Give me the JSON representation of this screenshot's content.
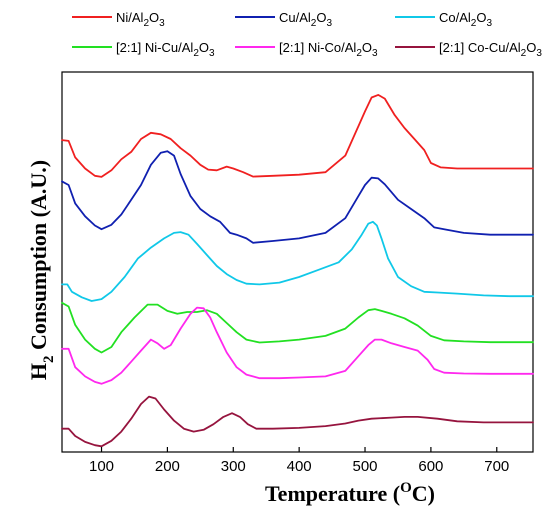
{
  "chart_data": {
    "type": "line",
    "xlabel_main": "Temperature (",
    "xlabel_sup": "O",
    "xlabel_tail": "C)",
    "ylabel_main": "H",
    "ylabel_sub": "2",
    "ylabel_tail": " Consumption (A.U.)",
    "xlim": [
      40,
      755
    ],
    "ylim": [
      0,
      1
    ],
    "x_ticks": [
      100,
      200,
      300,
      400,
      500,
      600,
      700
    ],
    "y_ticks_shown": false,
    "grid": false,
    "legend_position": "top",
    "series": [
      {
        "name": "Ni/Al2O3",
        "legend": {
          "pre": "Ni/Al",
          "s1": "2",
          "mid": "O",
          "s2": "3"
        },
        "color": "#f02020",
        "x": [
          40,
          50,
          60,
          75,
          90,
          100,
          115,
          130,
          145,
          160,
          175,
          190,
          205,
          220,
          235,
          250,
          262,
          275,
          290,
          300,
          315,
          330,
          360,
          400,
          440,
          470,
          490,
          500,
          510,
          520,
          530,
          545,
          560,
          575,
          590,
          600,
          615,
          640,
          680,
          720,
          755
        ],
        "y": [
          0.842,
          0.84,
          0.795,
          0.765,
          0.745,
          0.742,
          0.76,
          0.79,
          0.81,
          0.845,
          0.862,
          0.858,
          0.845,
          0.82,
          0.8,
          0.775,
          0.762,
          0.76,
          0.77,
          0.765,
          0.755,
          0.743,
          0.745,
          0.748,
          0.755,
          0.8,
          0.88,
          0.92,
          0.958,
          0.965,
          0.955,
          0.91,
          0.875,
          0.845,
          0.815,
          0.78,
          0.768,
          0.765,
          0.765,
          0.765,
          0.765
        ]
      },
      {
        "name": "Cu/Al2O3",
        "legend": {
          "pre": "Cu/Al",
          "s1": "2",
          "mid": "O",
          "s2": "3"
        },
        "color": "#1020b0",
        "x": [
          40,
          50,
          60,
          75,
          90,
          100,
          115,
          130,
          145,
          160,
          175,
          190,
          200,
          210,
          220,
          235,
          250,
          265,
          280,
          295,
          305,
          320,
          330,
          360,
          400,
          440,
          470,
          490,
          500,
          510,
          520,
          530,
          550,
          570,
          590,
          605,
          620,
          650,
          690,
          720,
          755
        ],
        "y": [
          0.73,
          0.72,
          0.67,
          0.635,
          0.61,
          0.6,
          0.612,
          0.64,
          0.68,
          0.72,
          0.775,
          0.808,
          0.812,
          0.8,
          0.75,
          0.69,
          0.655,
          0.635,
          0.62,
          0.59,
          0.585,
          0.575,
          0.563,
          0.568,
          0.575,
          0.59,
          0.63,
          0.69,
          0.72,
          0.74,
          0.738,
          0.722,
          0.68,
          0.655,
          0.63,
          0.605,
          0.6,
          0.59,
          0.585,
          0.585,
          0.585
        ]
      },
      {
        "name": "Co/Al2O3",
        "legend": {
          "pre": "Co/Al",
          "s1": "2",
          "mid": "O",
          "s2": "3"
        },
        "color": "#10c8e8",
        "x": [
          40,
          48,
          55,
          70,
          85,
          100,
          115,
          135,
          155,
          175,
          195,
          210,
          220,
          232,
          245,
          260,
          275,
          290,
          305,
          320,
          340,
          370,
          400,
          430,
          460,
          480,
          495,
          505,
          512,
          518,
          525,
          535,
          550,
          570,
          590,
          610,
          640,
          680,
          720,
          755
        ],
        "y": [
          0.45,
          0.45,
          0.43,
          0.415,
          0.405,
          0.41,
          0.43,
          0.47,
          0.52,
          0.55,
          0.575,
          0.59,
          0.592,
          0.585,
          0.56,
          0.53,
          0.5,
          0.478,
          0.462,
          0.452,
          0.45,
          0.455,
          0.47,
          0.49,
          0.51,
          0.545,
          0.585,
          0.615,
          0.62,
          0.61,
          0.575,
          0.52,
          0.47,
          0.445,
          0.43,
          0.428,
          0.425,
          0.42,
          0.418,
          0.418
        ]
      },
      {
        "name": "[2:1] Ni-Cu/Al2O3",
        "legend": {
          "pre": "[2:1] Ni-Cu/Al",
          "s1": "2",
          "mid": "O",
          "s2": "3"
        },
        "color": "#22e022",
        "x": [
          40,
          50,
          60,
          75,
          90,
          100,
          115,
          130,
          150,
          170,
          185,
          200,
          215,
          230,
          245,
          260,
          275,
          290,
          305,
          320,
          340,
          370,
          400,
          440,
          470,
          490,
          505,
          515,
          525,
          540,
          560,
          580,
          600,
          620,
          650,
          690,
          720,
          755
        ],
        "y": [
          0.4,
          0.39,
          0.34,
          0.3,
          0.275,
          0.265,
          0.28,
          0.32,
          0.36,
          0.395,
          0.395,
          0.378,
          0.37,
          0.375,
          0.375,
          0.38,
          0.37,
          0.345,
          0.32,
          0.3,
          0.292,
          0.295,
          0.3,
          0.31,
          0.33,
          0.36,
          0.38,
          0.383,
          0.378,
          0.37,
          0.358,
          0.338,
          0.31,
          0.298,
          0.295,
          0.293,
          0.293,
          0.293
        ]
      },
      {
        "name": "[2:1] Ni-Co/Al2O3",
        "legend": {
          "pre": "[2:1] Ni-Co/Al",
          "s1": "2",
          "mid": "O",
          "s2": "3"
        },
        "color": "#ff28ee",
        "x": [
          40,
          50,
          60,
          75,
          90,
          100,
          115,
          130,
          145,
          160,
          175,
          185,
          195,
          205,
          220,
          235,
          245,
          255,
          265,
          275,
          290,
          305,
          320,
          340,
          370,
          400,
          440,
          470,
          490,
          505,
          515,
          525,
          540,
          560,
          580,
          595,
          605,
          620,
          650,
          690,
          720,
          755
        ],
        "y": [
          0.275,
          0.275,
          0.225,
          0.2,
          0.185,
          0.18,
          0.19,
          0.21,
          0.24,
          0.27,
          0.3,
          0.29,
          0.275,
          0.285,
          0.33,
          0.37,
          0.387,
          0.385,
          0.36,
          0.32,
          0.265,
          0.225,
          0.205,
          0.195,
          0.195,
          0.197,
          0.2,
          0.215,
          0.255,
          0.285,
          0.3,
          0.3,
          0.29,
          0.28,
          0.27,
          0.245,
          0.22,
          0.21,
          0.208,
          0.207,
          0.207,
          0.207
        ]
      },
      {
        "name": "[2:1] Co-Cu/Al2O3",
        "legend": {
          "pre": "[2:1] Co-Cu/Al",
          "s1": "2",
          "mid": "O",
          "s2": "3"
        },
        "color": "#96143e",
        "x": [
          40,
          50,
          60,
          75,
          90,
          100,
          115,
          130,
          145,
          160,
          172,
          182,
          195,
          210,
          225,
          240,
          255,
          270,
          285,
          298,
          310,
          322,
          335,
          360,
          400,
          440,
          470,
          490,
          510,
          540,
          560,
          580,
          610,
          640,
          680,
          720,
          755
        ],
        "y": [
          0.058,
          0.058,
          0.038,
          0.022,
          0.013,
          0.01,
          0.025,
          0.05,
          0.085,
          0.125,
          0.145,
          0.14,
          0.11,
          0.08,
          0.058,
          0.05,
          0.055,
          0.07,
          0.09,
          0.1,
          0.09,
          0.07,
          0.058,
          0.058,
          0.06,
          0.065,
          0.072,
          0.08,
          0.085,
          0.088,
          0.09,
          0.09,
          0.085,
          0.078,
          0.075,
          0.075,
          0.075
        ]
      }
    ]
  },
  "colors": {
    "axis": "#000000",
    "background": "#ffffff"
  }
}
